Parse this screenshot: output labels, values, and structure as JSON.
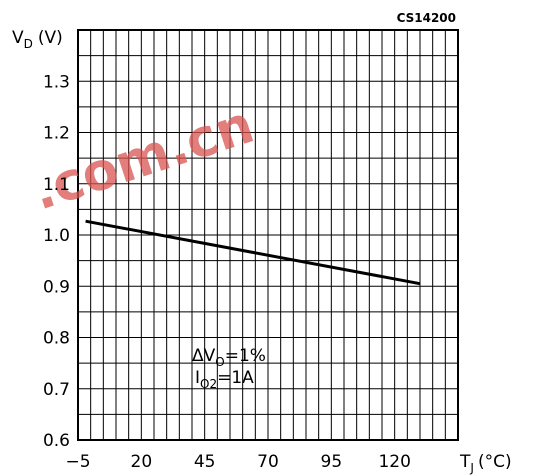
{
  "chart_data": {
    "type": "line",
    "figure_code": "CS14200",
    "ylabel": {
      "main": "V",
      "sub": "D",
      "unit": "(V)"
    },
    "xlabel": {
      "main": "T",
      "sub": "J",
      "unit": "(°C)"
    },
    "x_tick_labels": [
      "−5",
      "20",
      "45",
      "70",
      "95",
      "120"
    ],
    "y_tick_labels": [
      "0.6",
      "0.7",
      "0.8",
      "0.9",
      "1.0",
      "1.1",
      "1.2",
      "1.3"
    ],
    "xlim": [
      -5,
      145
    ],
    "ylim": [
      0.6,
      1.4
    ],
    "grid": true,
    "series": [
      {
        "x": [
          -2,
          130
        ],
        "y": [
          1.027,
          0.905
        ]
      }
    ],
    "annotation": [
      {
        "main": "ΔV",
        "sub": "O",
        "rest": "=1%"
      },
      {
        "main": "I",
        "sub": "O2",
        "rest": "=1A"
      }
    ],
    "line_color": "#000000",
    "grid_color": "#000000"
  },
  "watermark": {
    "text": ".com.cn",
    "color": "#d9534f"
  }
}
